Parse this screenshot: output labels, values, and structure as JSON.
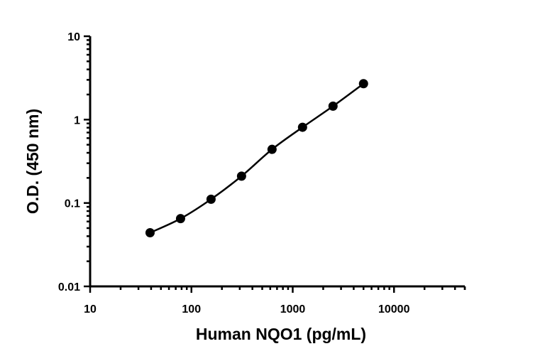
{
  "chart_data": {
    "type": "scatter",
    "title": "",
    "xlabel": "Human NQO1 (pg/mL)",
    "ylabel": "O.D. (450 nm)",
    "xscale": "log",
    "yscale": "log",
    "xlim": [
      10,
      50000
    ],
    "ylim": [
      0.01,
      10
    ],
    "x_ticks": [
      "10",
      "100",
      "1000",
      "10000"
    ],
    "y_ticks": [
      "0.01",
      "0.1",
      "1",
      "10"
    ],
    "grid": false,
    "legend": "none",
    "series": [
      {
        "x": [
          39.06,
          78.13,
          156.25,
          312.5,
          625,
          1250,
          2500,
          5000
        ],
        "y": [
          0.044,
          0.065,
          0.111,
          0.21,
          0.44,
          0.81,
          1.45,
          2.7
        ],
        "marker": "circle",
        "color": "#000000",
        "fit_curve": true
      }
    ]
  }
}
